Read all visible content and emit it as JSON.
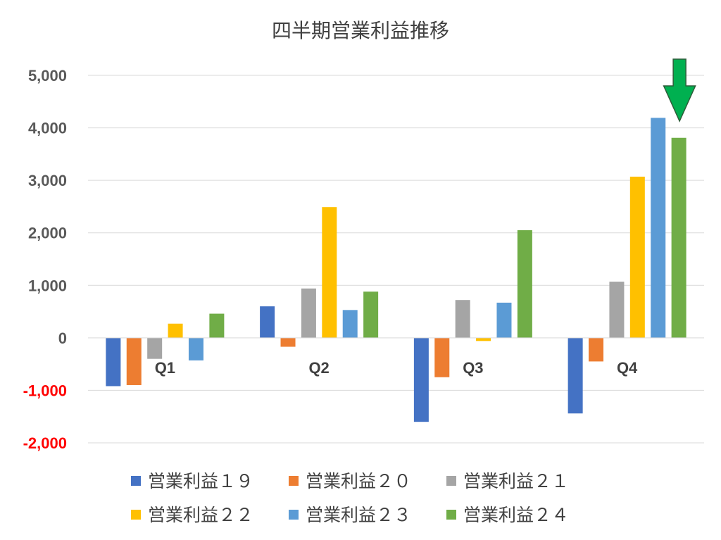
{
  "chart_data": {
    "type": "bar",
    "title": "四半期営業利益推移",
    "categories": [
      "Q1",
      "Q2",
      "Q3",
      "Q4"
    ],
    "series": [
      {
        "name": "営業利益１９",
        "color": "#4472C4",
        "values": [
          -920,
          600,
          -1600,
          -1440
        ]
      },
      {
        "name": "営業利益２０",
        "color": "#ED7D31",
        "values": [
          -900,
          -170,
          -750,
          -450
        ]
      },
      {
        "name": "営業利益２１",
        "color": "#A5A5A5",
        "values": [
          -400,
          940,
          720,
          1070
        ]
      },
      {
        "name": "営業利益２２",
        "color": "#FFC000",
        "values": [
          270,
          2490,
          -60,
          3070
        ]
      },
      {
        "name": "営業利益２３",
        "color": "#5B9BD5",
        "values": [
          -430,
          530,
          670,
          4190
        ]
      },
      {
        "name": "営業利益２４",
        "color": "#70AD47",
        "values": [
          460,
          880,
          2050,
          3810
        ]
      }
    ],
    "ylim": [
      -2000,
      5000
    ],
    "yticks": [
      {
        "value": 5000,
        "label": "5,000"
      },
      {
        "value": 4000,
        "label": "4,000"
      },
      {
        "value": 3000,
        "label": "3,000"
      },
      {
        "value": 2000,
        "label": "2,000"
      },
      {
        "value": 1000,
        "label": "1,000"
      },
      {
        "value": 0,
        "label": "0"
      },
      {
        "value": -1000,
        "label": "-1,000"
      },
      {
        "value": -2000,
        "label": "-2,000"
      }
    ],
    "negative_tick_color": "#FF0000",
    "positive_tick_color": "#595959",
    "grid": true,
    "legend_position": "bottom",
    "annotation": {
      "icon": "down-arrow-icon",
      "color": "#00B050",
      "points_to": "Q4 営業利益２４"
    }
  }
}
